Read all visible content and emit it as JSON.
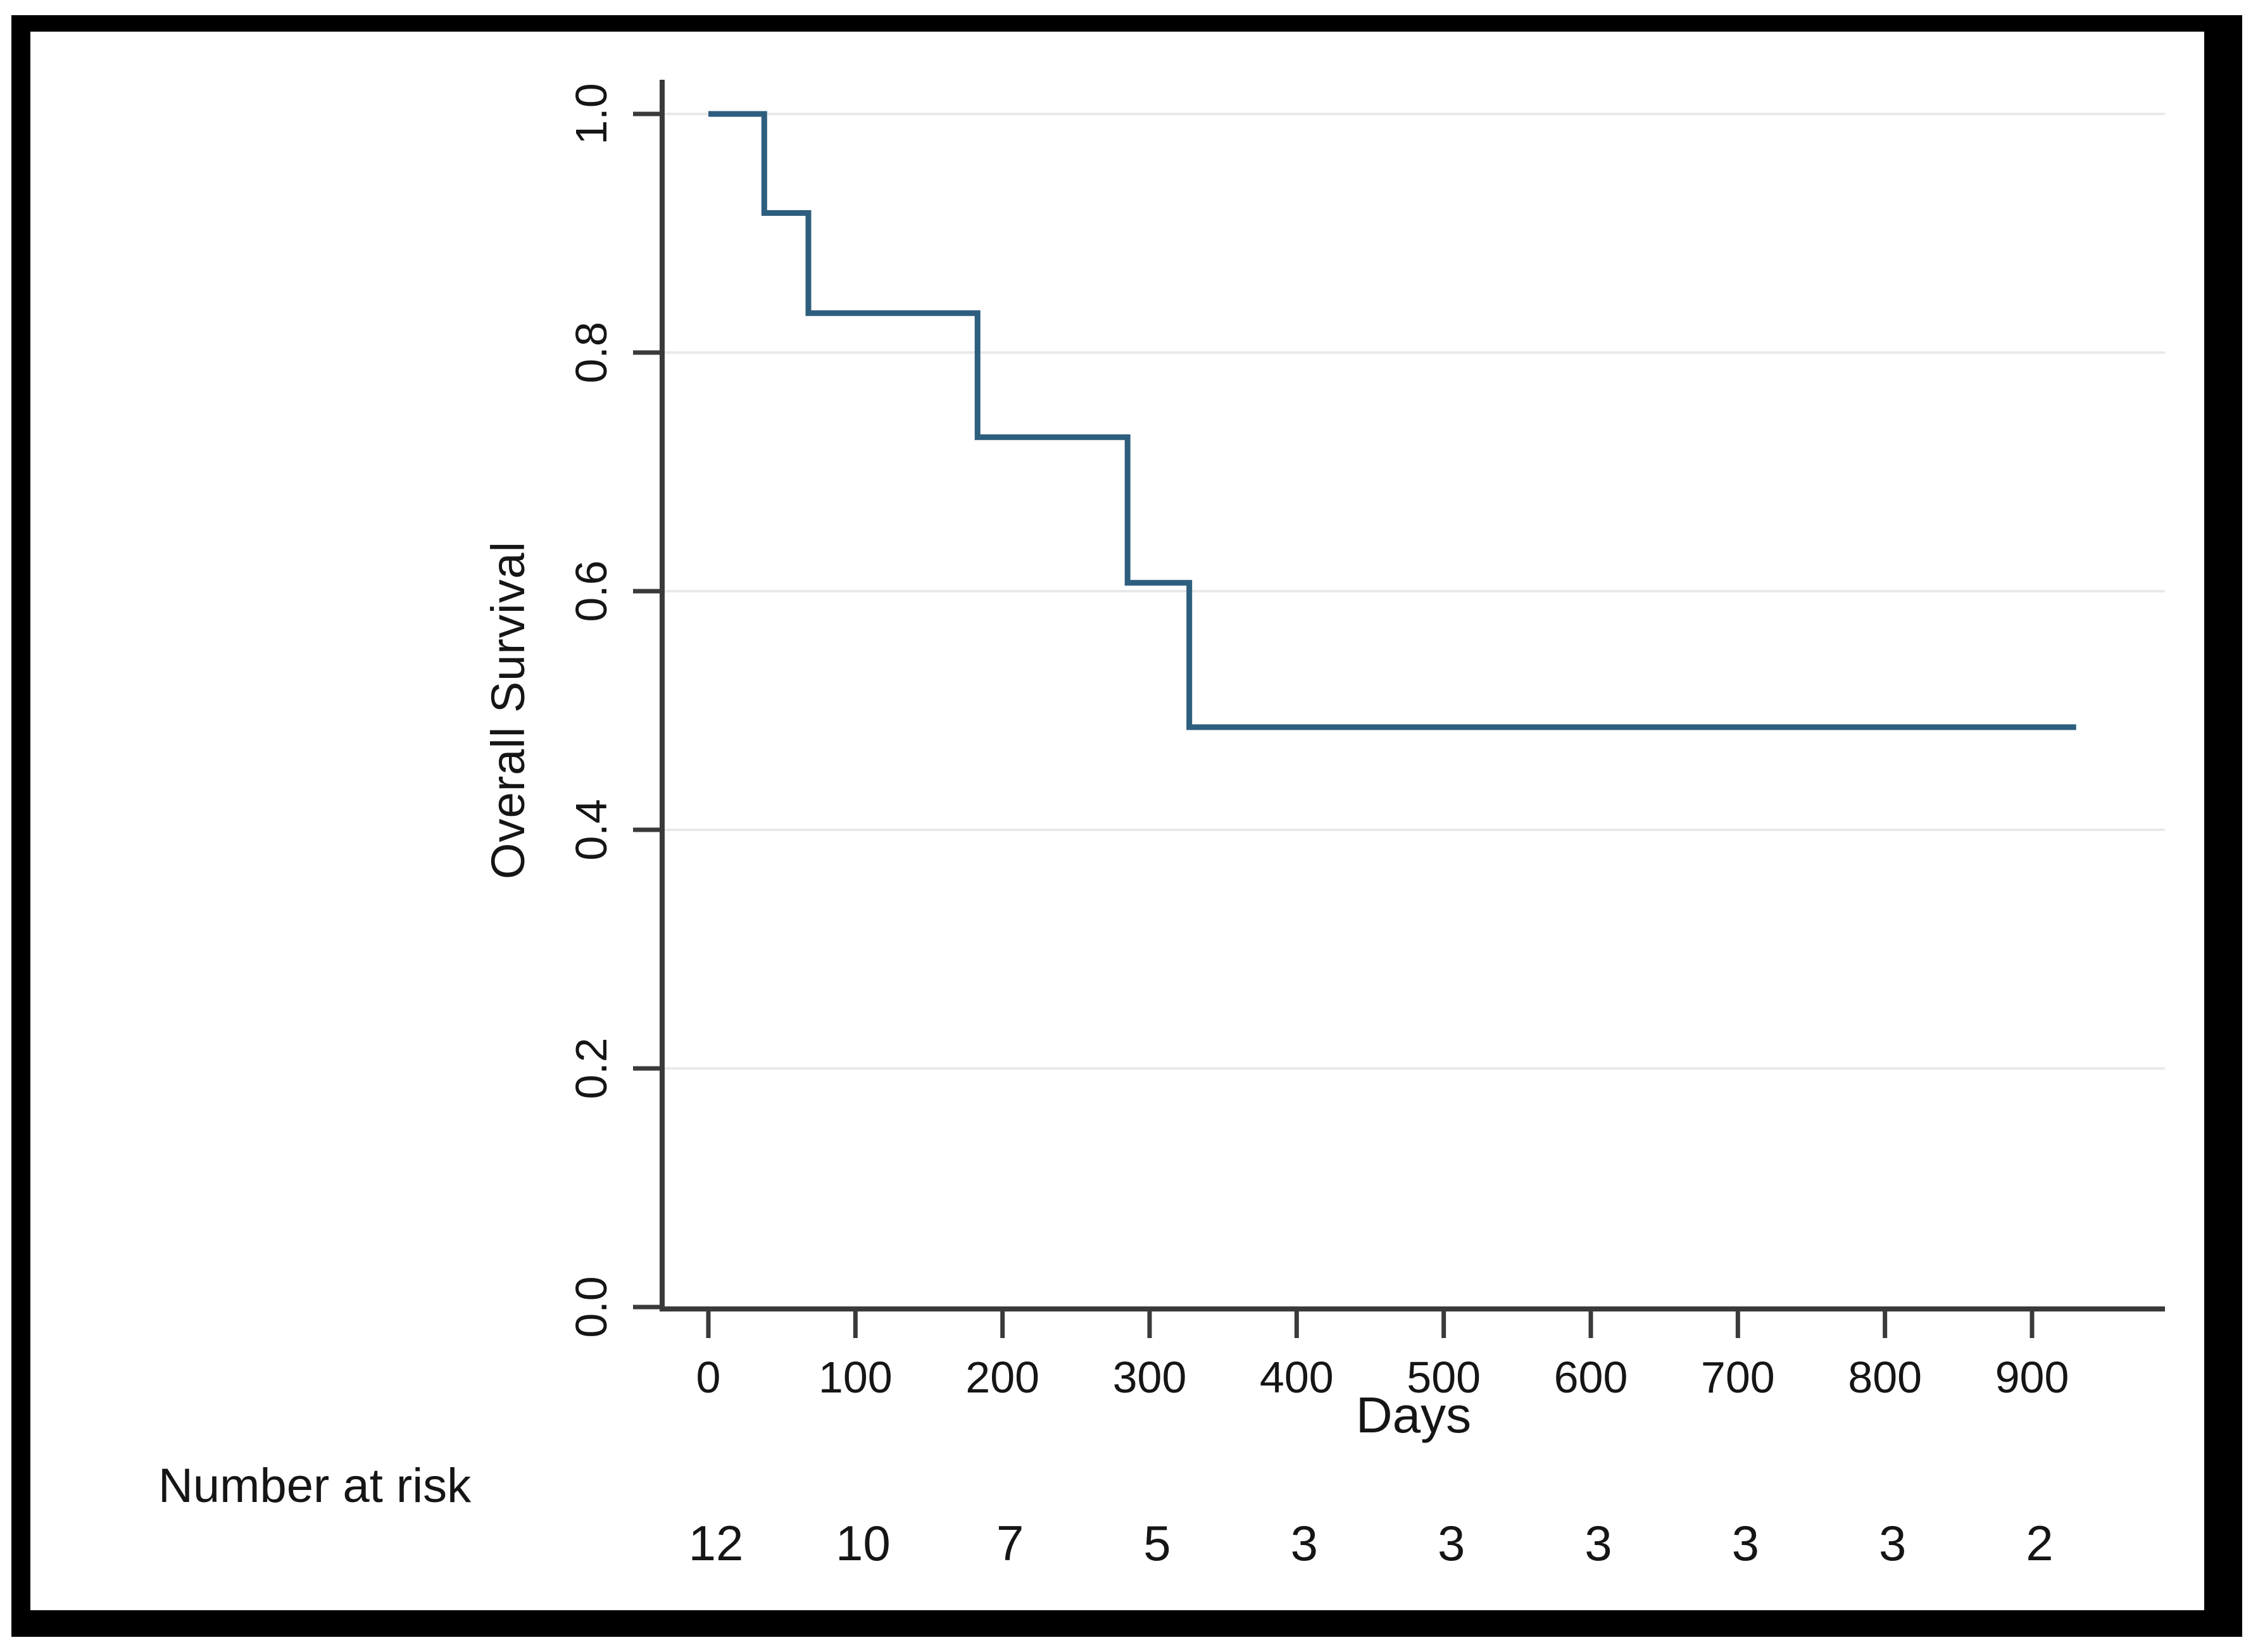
{
  "colors": {
    "curve": "#2e5e7e",
    "axis": "#3a3a3a",
    "grid": "#e9e9e9",
    "text": "#151515",
    "frame": "#000000",
    "background": "#ffffff"
  },
  "chart_data": {
    "type": "line",
    "variant": "kaplan-meier-step-function",
    "title": "",
    "xlabel": "Days",
    "ylabel": "Overall Survival",
    "xlim": [
      0,
      990
    ],
    "ylim": [
      0.0,
      1.0
    ],
    "grid": "horizontal gridlines at each y tick",
    "legend": "none",
    "x_ticks": {
      "values": [
        0,
        100,
        200,
        300,
        400,
        500,
        600,
        700,
        800,
        900
      ],
      "labels": [
        "0",
        "100",
        "200",
        "300",
        "400",
        "500",
        "600",
        "700",
        "800",
        "900"
      ]
    },
    "y_ticks": {
      "values": [
        0.0,
        0.2,
        0.4,
        0.6,
        0.8,
        1.0
      ],
      "labels": [
        "0.0",
        "0.2",
        "0.4",
        "0.6",
        "0.8",
        "1.0"
      ]
    },
    "series": [
      {
        "name": "Overall Survival",
        "color": "#2e5e7e",
        "step_points": [
          [
            0,
            1.0
          ],
          [
            38,
            1.0
          ],
          [
            38,
            0.917
          ],
          [
            68,
            0.917
          ],
          [
            68,
            0.833
          ],
          [
            183,
            0.833
          ],
          [
            183,
            0.729
          ],
          [
            285,
            0.729
          ],
          [
            285,
            0.607
          ],
          [
            327,
            0.607
          ],
          [
            327,
            0.486
          ],
          [
            930,
            0.486
          ]
        ]
      }
    ],
    "number_at_risk": {
      "header": "Number at risk",
      "times": [
        0,
        100,
        200,
        300,
        400,
        500,
        600,
        700,
        800,
        900
      ],
      "counts": [
        "12",
        "10",
        "7",
        "5",
        "3",
        "3",
        "3",
        "3",
        "3",
        "2"
      ]
    }
  }
}
